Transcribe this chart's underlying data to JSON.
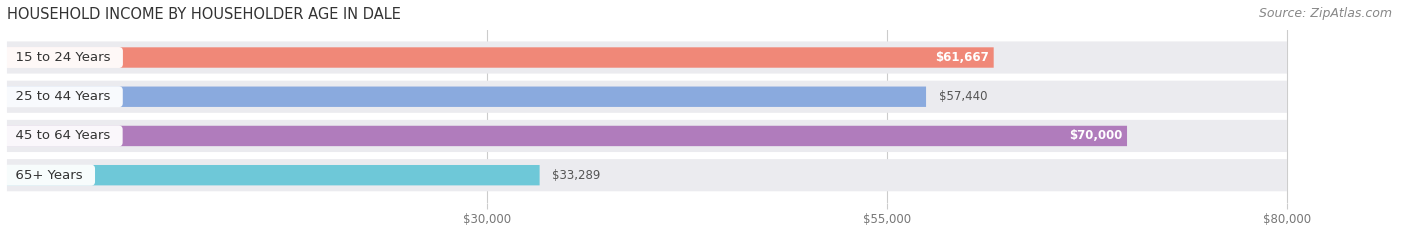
{
  "title": "HOUSEHOLD INCOME BY HOUSEHOLDER AGE IN DALE",
  "source": "Source: ZipAtlas.com",
  "categories": [
    "15 to 24 Years",
    "25 to 44 Years",
    "45 to 64 Years",
    "65+ Years"
  ],
  "values": [
    61667,
    57440,
    70000,
    33289
  ],
  "value_labels": [
    "$61,667",
    "$57,440",
    "$70,000",
    "$33,289"
  ],
  "bar_colors": [
    "#F08878",
    "#8AAADE",
    "#B07CBC",
    "#6EC8D8"
  ],
  "bar_bg_color": "#EBEBEF",
  "xlim_max": 87000,
  "data_max": 80000,
  "xticks": [
    30000,
    55000,
    80000
  ],
  "xtick_labels": [
    "$30,000",
    "$55,000",
    "$80,000"
  ],
  "title_fontsize": 10.5,
  "source_fontsize": 9,
  "label_fontsize": 9.5,
  "value_fontsize": 8.5,
  "bar_height": 0.52,
  "fig_bg": "#FFFFFF",
  "label_bg": "#FFFFFF",
  "value_inside_indices": [
    0,
    2
  ],
  "value_outside_indices": [
    1,
    3
  ]
}
